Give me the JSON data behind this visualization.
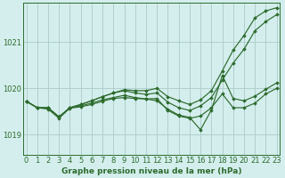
{
  "title": "Graphe pression niveau de la mer (hPa)",
  "bg_color": "#d4eeed",
  "line_color": "#2d6b2d",
  "grid_color": "#b0d0cc",
  "ylim": [
    1018.55,
    1021.85
  ],
  "xlim": [
    -0.3,
    23.3
  ],
  "yticks": [
    1019,
    1020,
    1021
  ],
  "xticks": [
    0,
    1,
    2,
    3,
    4,
    5,
    6,
    7,
    8,
    9,
    10,
    11,
    12,
    13,
    14,
    15,
    16,
    17,
    18,
    19,
    20,
    21,
    22,
    23
  ],
  "series": [
    [
      1019.72,
      1019.58,
      1019.58,
      1019.38,
      1019.62,
      1019.72,
      1019.8,
      1019.88,
      1019.93,
      1019.97,
      1019.93,
      1019.92,
      1019.95,
      1019.77,
      1019.65,
      1019.57,
      1019.7,
      1019.92,
      1020.35,
      1020.8,
      1021.18,
      1021.5,
      1021.65,
      1021.75
    ],
    [
      1019.72,
      1019.58,
      1019.58,
      1019.38,
      1019.62,
      1019.72,
      1019.8,
      1019.88,
      1019.93,
      1019.95,
      1019.9,
      1019.87,
      1019.85,
      1019.67,
      1019.55,
      1019.48,
      1019.6,
      1019.8,
      1020.22,
      1020.58,
      1020.88,
      1021.25,
      1021.45,
      1021.62
    ],
    [
      1019.72,
      1019.58,
      1019.58,
      1019.38,
      1019.62,
      1019.72,
      1019.78,
      1019.83,
      1019.88,
      1019.9,
      1019.87,
      1019.83,
      1019.78,
      1019.55,
      1019.43,
      1019.38,
      1019.45,
      1019.63,
      1019.97,
      1020.32,
      1020.58,
      1021.05,
      1021.25,
      1021.52
    ],
    [
      1019.72,
      1019.58,
      1019.58,
      1019.38,
      1019.62,
      1019.68,
      1019.73,
      1019.77,
      1019.82,
      1019.85,
      1019.83,
      1019.8,
      1019.73,
      1019.52,
      1019.4,
      1019.35,
      1019.37,
      1019.52,
      1019.75,
      1019.62,
      1019.6,
      1019.68,
      1019.82,
      1019.93
    ]
  ],
  "series4_special": [
    1019.72,
    1019.58,
    1019.58,
    1019.38,
    1019.62,
    1019.68,
    1019.73,
    1019.77,
    1019.82,
    1019.85,
    1019.83,
    1019.8,
    1019.73,
    1019.52,
    1019.4,
    1019.35,
    1019.37,
    1019.52,
    1019.75,
    1019.62,
    1019.6,
    1019.68,
    1019.82,
    1019.93
  ]
}
